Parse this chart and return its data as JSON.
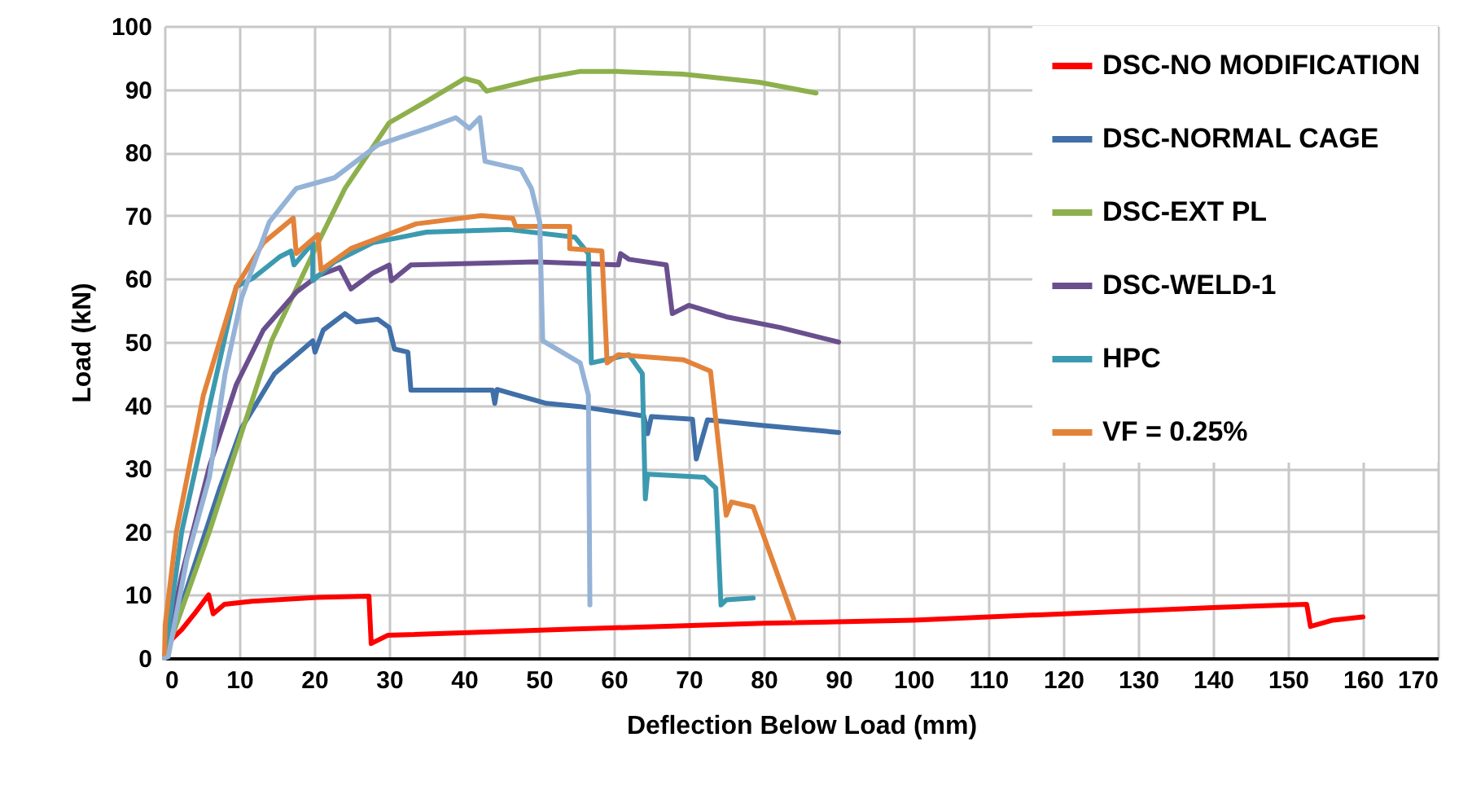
{
  "chart_data": {
    "type": "line",
    "xlabel": "Deflection Below Load (mm)",
    "ylabel": "Load (kN)",
    "xlim": [
      0,
      170
    ],
    "ylim": [
      0,
      100
    ],
    "xticks": [
      0,
      10,
      20,
      30,
      40,
      50,
      60,
      70,
      80,
      90,
      100,
      110,
      120,
      130,
      140,
      150,
      160,
      170
    ],
    "yticks": [
      0,
      10,
      20,
      30,
      40,
      50,
      60,
      70,
      80,
      90,
      100
    ],
    "grid": true,
    "legend": "top right",
    "series": [
      {
        "name": "DSC-NO MODIFICATION",
        "color": "#ff0000",
        "x": [
          0,
          1,
          2.3,
          4,
          5.9,
          6.5,
          8,
          11.7,
          20.4,
          27.3,
          27.6,
          29.8,
          55,
          80,
          100,
          120,
          140,
          152.5,
          153,
          156,
          160
        ],
        "values": [
          0,
          3,
          4.5,
          7,
          10,
          7,
          8.5,
          9,
          9.6,
          9.8,
          2.3,
          3.6,
          4.6,
          5.5,
          6,
          7,
          8,
          8.5,
          5,
          6,
          6.5
        ]
      },
      {
        "name": "DSC-NORMAL CAGE",
        "color": "#4170a8",
        "x": [
          0,
          3.1,
          7.4,
          10.3,
          14.7,
          19.8,
          20.1,
          21.2,
          24.1,
          25.6,
          28.5,
          30,
          30.7,
          32.5,
          32.9,
          43.8,
          44.1,
          44.4,
          51,
          55.4,
          60,
          64,
          64.5,
          65,
          70.5,
          71,
          72.5,
          80,
          90
        ],
        "values": [
          0,
          11.4,
          26.9,
          36.4,
          45,
          50.2,
          48.4,
          51.9,
          54.5,
          53.2,
          53.6,
          52.3,
          48.9,
          48.4,
          42.4,
          42.4,
          40.3,
          42.5,
          40.3,
          39.8,
          39,
          38.3,
          35.5,
          38.2,
          37.8,
          31.5,
          37.7,
          36.8,
          35.7
        ]
      },
      {
        "name": "DSC-EXT PL",
        "color": "#8db04c",
        "x": [
          0,
          6,
          14.3,
          20.5,
          24.1,
          30,
          35,
          40.1,
          42,
          43,
          49.6,
          55.4,
          60.6,
          69.2,
          79.4,
          87
        ],
        "values": [
          0,
          20,
          50.2,
          65.7,
          74.3,
          84.7,
          88.1,
          91.7,
          91.1,
          89.7,
          91.6,
          92.8,
          92.8,
          92.4,
          91.1,
          89.4
        ]
      },
      {
        "name": "DSC-WELD-1",
        "color": "#6a4f8e",
        "x": [
          0,
          2.3,
          6,
          9.6,
          13.2,
          17.6,
          20.5,
          23.4,
          24.9,
          27.8,
          30,
          30.3,
          32.9,
          49.6,
          60.6,
          60.9,
          62,
          67,
          67.8,
          70,
          75,
          82.2,
          90
        ],
        "values": [
          0,
          13.1,
          30.3,
          43.3,
          51.9,
          57.9,
          60.5,
          61.8,
          58.4,
          60.9,
          62.2,
          59.7,
          62.2,
          62.7,
          62.2,
          64,
          63.1,
          62.2,
          54.5,
          55.8,
          54,
          52.3,
          50
        ]
      },
      {
        "name": "HPC",
        "color": "#3c9ab0",
        "x": [
          0,
          2.3,
          6,
          9.6,
          11.8,
          15.4,
          16.9,
          17.3,
          19.8,
          19.8,
          22.7,
          27.8,
          35,
          46,
          54.8,
          56.6,
          57,
          62,
          63.8,
          64.2,
          64.5,
          72.1,
          73.6,
          74.3,
          75,
          78.6
        ],
        "values": [
          0,
          20,
          39.8,
          58.8,
          60.1,
          63.5,
          64.4,
          62.2,
          65.7,
          59.7,
          62.7,
          65.7,
          67.4,
          67.8,
          66.6,
          64,
          46.7,
          48,
          45,
          25.2,
          29.1,
          28.6,
          26.9,
          8.4,
          9.2,
          9.5
        ]
      },
      {
        "name": "VF = 0.25%",
        "color": "#e3833a",
        "x": [
          0,
          0.1,
          1.6,
          5.2,
          9.6,
          13.2,
          17.2,
          17.6,
          20.5,
          20.9,
          24.9,
          33.6,
          42.3,
          46.5,
          46.9,
          54.1,
          54.1,
          58.4,
          59.1,
          60.6,
          69.3,
          72.9,
          75,
          75.7,
          78.6,
          84
        ],
        "values": [
          0,
          5.3,
          20,
          41.6,
          58.8,
          65.7,
          69.6,
          64,
          67,
          61.4,
          64.8,
          68.7,
          70,
          69.6,
          68.3,
          68.3,
          64.8,
          64.4,
          46.7,
          48,
          47.2,
          45.4,
          22.6,
          24.7,
          23.9,
          6.2
        ]
      },
      {
        "color": "#95b3d7",
        "x": [
          0,
          0.5,
          3,
          6,
          8.1,
          10.3,
          14,
          17.6,
          22.7,
          28.5,
          35,
          38.9,
          40.7,
          42.1,
          42.8,
          47.6,
          49,
          50.1,
          50.5,
          55.5,
          56.6,
          56.8
        ],
        "values": [
          0,
          0.2,
          15.7,
          28.6,
          45,
          57,
          69,
          74.3,
          76,
          81.2,
          83.8,
          85.5,
          83.8,
          85.5,
          78.6,
          77.3,
          74.3,
          69,
          50.2,
          46.7,
          41.6,
          8.4
        ]
      }
    ]
  }
}
